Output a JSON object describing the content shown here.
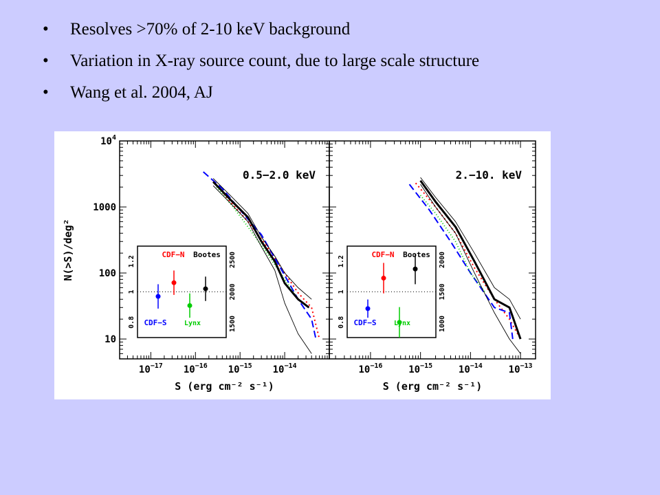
{
  "slide": {
    "bullets": [
      {
        "text": "Resolves >70% of 2-10 keV background"
      },
      {
        "text": "Variation in X-ray source count, due to large scale structure"
      },
      {
        "text": "Wang et al. 2004, AJ"
      }
    ]
  },
  "colors": {
    "background": "#ccccff",
    "total": "#000000",
    "cdf_n": "#ff0000",
    "cdf_s": "#0000ff",
    "bootes": "#000000",
    "lynx": "#00cc00"
  },
  "chart_data": [
    {
      "type": "line",
      "panel_label": "0.5−2.0 keV",
      "xlabel": "S (erg cm⁻² s⁻¹)",
      "ylabel": "N(>S)/deg²",
      "x_scale": "log",
      "y_scale": "log",
      "xlim": [
        2e-18,
        1e-13
      ],
      "ylim": [
        5,
        10000
      ],
      "x_ticks": [
        {
          "value": 1e-17,
          "mant": "10",
          "exp": "−17"
        },
        {
          "value": 1e-16,
          "mant": "10",
          "exp": "−16"
        },
        {
          "value": 1e-15,
          "mant": "10",
          "exp": "−15"
        },
        {
          "value": 1e-14,
          "mant": "10",
          "exp": "−14"
        }
      ],
      "y_ticks": [
        {
          "value": 10000,
          "mant": "10",
          "exp": "4"
        },
        {
          "value": 1000,
          "mant": "1000",
          "exp": ""
        },
        {
          "value": 100,
          "mant": "100",
          "exp": ""
        },
        {
          "value": 10,
          "mant": "10",
          "exp": ""
        }
      ],
      "series": [
        {
          "name": "CDF-N",
          "role": "cdfn",
          "x": [
            2.5e-16,
            6e-16,
            1.5e-15,
            4e-15,
            1e-14,
            2e-14,
            4e-14,
            6e-14
          ],
          "y": [
            2500,
            1200,
            600,
            250,
            100,
            50,
            30,
            10
          ]
        },
        {
          "name": "CDF-S",
          "role": "cdfs",
          "x": [
            1.5e-16,
            4e-16,
            1e-15,
            3e-15,
            8e-15,
            2e-14,
            4e-14,
            5e-14
          ],
          "y": [
            3400,
            1900,
            900,
            380,
            120,
            40,
            20,
            10
          ]
        },
        {
          "name": "Lynx",
          "role": "lynx",
          "x": [
            3e-16,
            7e-16,
            1.5e-15,
            4e-15,
            1e-14,
            2e-14
          ],
          "y": [
            2000,
            1000,
            500,
            200,
            80,
            40
          ]
        },
        {
          "name": "total",
          "role": "total",
          "x": [
            2.5e-16,
            6e-16,
            1.5e-15,
            3e-15,
            6e-15,
            1e-14,
            2e-14,
            3.5e-14
          ],
          "y": [
            2400,
            1300,
            700,
            300,
            150,
            70,
            40,
            30
          ]
        },
        {
          "name": "upper",
          "role": "thin",
          "x": [
            2.5e-16,
            6e-16,
            1.5e-15,
            3e-15,
            6e-15,
            1e-14,
            2e-14,
            4e-14
          ],
          "y": [
            2700,
            1500,
            800,
            350,
            180,
            100,
            60,
            40
          ]
        },
        {
          "name": "lower",
          "role": "thin",
          "x": [
            2.5e-16,
            6e-16,
            1.5e-15,
            3e-15,
            6e-15,
            1e-14,
            2e-14,
            4e-14
          ],
          "y": [
            2100,
            1150,
            600,
            250,
            110,
            35,
            12,
            6
          ]
        }
      ],
      "inset": {
        "y2_ticks": [
          "1500",
          "2000",
          "2500"
        ],
        "y_ticks": [
          "0.8",
          "1",
          "1.2"
        ],
        "labels": {
          "cdfn": "CDF−N",
          "bootes": "Bootes",
          "cdfs": "CDF−S",
          "lynx": "Lynx"
        },
        "points": [
          {
            "name": "CDF-S",
            "role": "cdfs",
            "y": 0.97,
            "err": 0.08
          },
          {
            "name": "CDF-N",
            "role": "cdfn",
            "y": 1.06,
            "err": 0.08
          },
          {
            "name": "Lynx",
            "role": "lynx",
            "y": 0.91,
            "err": 0.08
          },
          {
            "name": "Bootes",
            "role": "bootes",
            "y": 1.02,
            "err": 0.08
          }
        ]
      }
    },
    {
      "type": "line",
      "panel_label": "2.−10. keV",
      "xlabel": "S (erg cm⁻² s⁻¹)",
      "xlim": [
        1.5e-17,
        2e-13
      ],
      "ylim": [
        5,
        10000
      ],
      "x_scale": "log",
      "y_scale": "log",
      "x_ticks": [
        {
          "value": 1e-16,
          "mant": "10",
          "exp": "−16"
        },
        {
          "value": 1e-15,
          "mant": "10",
          "exp": "−15"
        },
        {
          "value": 1e-14,
          "mant": "10",
          "exp": "−14"
        },
        {
          "value": 1e-13,
          "mant": "10",
          "exp": "−13"
        }
      ],
      "series": [
        {
          "name": "CDF-N",
          "role": "cdfn",
          "x": [
            8e-16,
            2e-15,
            5e-15,
            1.2e-14,
            3e-14,
            6e-14,
            1e-13
          ],
          "y": [
            2300,
            1000,
            400,
            120,
            40,
            20,
            10
          ]
        },
        {
          "name": "CDF-S",
          "role": "cdfs",
          "x": [
            6e-16,
            1.5e-15,
            4e-15,
            1e-14,
            3e-14,
            6e-14,
            7e-14
          ],
          "y": [
            2200,
            900,
            300,
            100,
            30,
            25,
            10
          ]
        },
        {
          "name": "Lynx",
          "role": "lynx",
          "x": [
            1e-15,
            2e-15,
            5e-15,
            1e-14,
            2e-14
          ],
          "y": [
            1500,
            800,
            300,
            100,
            50
          ]
        },
        {
          "name": "total",
          "role": "total",
          "x": [
            1e-15,
            2e-15,
            5e-15,
            1.2e-14,
            3e-14,
            6e-14,
            1e-13
          ],
          "y": [
            2500,
            1200,
            500,
            150,
            40,
            30,
            10
          ]
        },
        {
          "name": "upper",
          "role": "thin",
          "x": [
            1e-15,
            2e-15,
            5e-15,
            1.2e-14,
            3e-14,
            6e-14,
            1e-13
          ],
          "y": [
            2800,
            1400,
            600,
            200,
            60,
            40,
            20
          ]
        },
        {
          "name": "lower",
          "role": "thin",
          "x": [
            1e-15,
            2e-15,
            5e-15,
            1.2e-14,
            3e-14,
            6e-14,
            1e-13
          ],
          "y": [
            2200,
            1000,
            400,
            100,
            25,
            10,
            6
          ]
        }
      ],
      "inset": {
        "y2_ticks": [
          "1000",
          "1500",
          "2000"
        ],
        "y_ticks": [
          "0.8",
          "1",
          "1.2"
        ],
        "labels": {
          "cdfn": "CDF−N",
          "bootes": "Bootes",
          "cdfs": "CDF−S",
          "lynx": "Lynx"
        },
        "points": [
          {
            "name": "CDF-S",
            "role": "cdfs",
            "y": 0.89,
            "err": 0.06
          },
          {
            "name": "CDF-N",
            "role": "cdfn",
            "y": 1.09,
            "err": 0.1
          },
          {
            "name": "Lynx",
            "role": "lynx",
            "y": 0.8,
            "err": 0.1
          },
          {
            "name": "Bootes",
            "role": "bootes",
            "y": 1.15,
            "err": 0.1
          }
        ]
      }
    }
  ]
}
